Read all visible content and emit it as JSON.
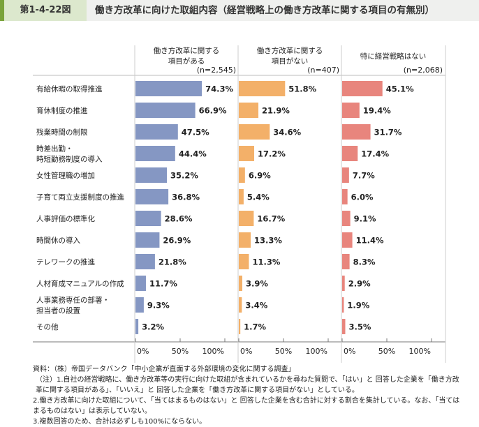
{
  "header": {
    "figure_no": "第1-4-22図",
    "title": "働き方改革に向けた取組内容（経営戦略上の働き方改革に関する項目の有無別）"
  },
  "chart_data": {
    "type": "bar",
    "title": "働き方改革に向けた取組内容（経営戦略上の働き方改革に関する項目の有無別）",
    "categories": [
      [
        "有給休暇の取得推進"
      ],
      [
        "育休制度の推進"
      ],
      [
        "残業時間の制限"
      ],
      [
        "時差出勤・",
        "時短勤務制度の導入"
      ],
      [
        "女性管理職の増加"
      ],
      [
        "子育て両立支援制度の推進"
      ],
      [
        "人事評価の標準化"
      ],
      [
        "時間休の導入"
      ],
      [
        "テレワークの推進"
      ],
      [
        "人材育成マニュアルの作成"
      ],
      [
        "人事業務専任の部署・",
        "担当者の設置"
      ],
      [
        "その他"
      ]
    ],
    "series": [
      {
        "name": [
          "働き方改革に関する",
          "項目がある"
        ],
        "n": "(n=2,545)",
        "color": "#8597c3",
        "values": [
          74.3,
          66.9,
          47.5,
          44.4,
          35.2,
          36.8,
          28.6,
          26.9,
          21.8,
          11.7,
          9.3,
          3.2
        ]
      },
      {
        "name": [
          "働き方改革に関する",
          "項目がない"
        ],
        "n": "(n=407)",
        "color": "#f3b069",
        "values": [
          51.8,
          21.9,
          34.6,
          17.2,
          6.9,
          5.4,
          16.7,
          13.3,
          11.3,
          3.9,
          3.4,
          1.7
        ]
      },
      {
        "name": [
          "特に経営戦略はない"
        ],
        "n": "(n=2,068)",
        "color": "#e8857d",
        "values": [
          45.1,
          19.4,
          31.7,
          17.4,
          7.7,
          6.0,
          9.1,
          11.4,
          8.3,
          2.9,
          1.9,
          3.5
        ]
      }
    ],
    "xlim": [
      0,
      100
    ],
    "xticks": [
      "0%",
      "50%",
      "100%"
    ],
    "unit": "%"
  },
  "notes": [
    "資料：（株）帝国データバンク「中小企業が直面する外部環境の変化に関する調査」",
    "（注）1.自社の経営戦略に、働き方改革等の実行に向けた取組が含まれているかを尋ねた質問で、「はい」と 回答した企業を「働き方改革に関する項目がある」、「いいえ」と 回答した企業を「働き方改革に関する項目がない」としている。",
    "2.働き方改革に向けた取組について、「当てはまるものはない」と 回答した企業を含む合計に対する割合を集計している。なお、「当てはまるものはない」は表示していない。",
    "3.複数回答のため、合計は必ずしも100%にならない。"
  ]
}
